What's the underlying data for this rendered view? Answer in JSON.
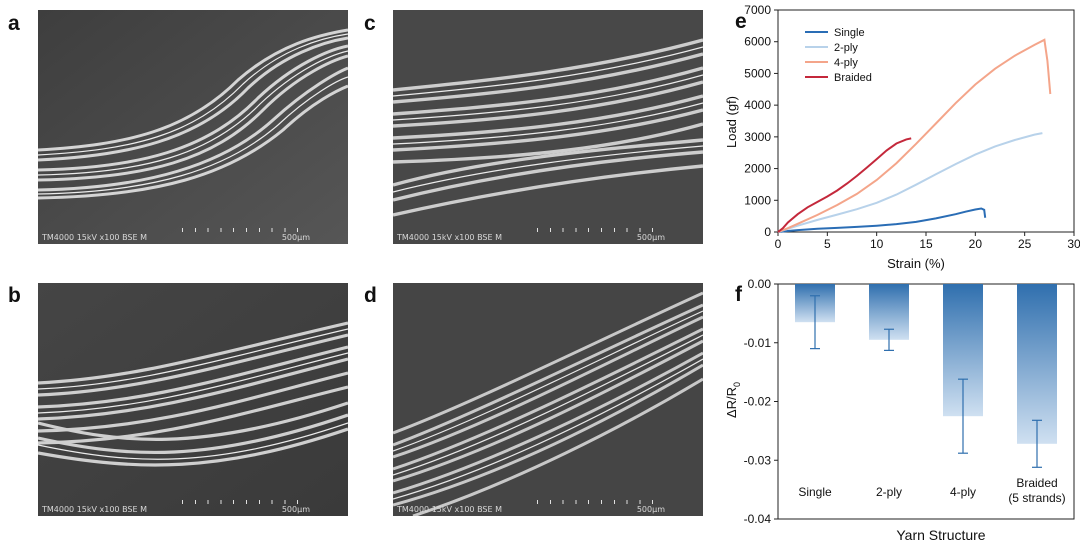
{
  "panels": [
    {
      "letter": "a",
      "caption": "TM4000 15kV x100 BSE M",
      "scale": "500µm"
    },
    {
      "letter": "b",
      "caption": "TM4000 15kV x100 BSE M",
      "scale": "500µm"
    },
    {
      "letter": "c",
      "caption": "TM4000 15kV x100 BSE M",
      "scale": "500µm"
    },
    {
      "letter": "d",
      "caption": "TM4000 15kV x100 BSE M",
      "scale": "500µm"
    }
  ],
  "panel_e_letter": "e",
  "panel_f_letter": "f",
  "chart_data": [
    {
      "type": "line",
      "xlabel": "Strain (%)",
      "ylabel": "Load (gf)",
      "xlim": [
        0,
        30
      ],
      "ylim": [
        0,
        7000
      ],
      "xticks": [
        "0",
        "5",
        "10",
        "15",
        "20",
        "25",
        "30"
      ],
      "yticks": [
        "0",
        "1000",
        "2000",
        "3000",
        "4000",
        "5000",
        "6000",
        "7000"
      ],
      "legend_position": "top-left",
      "series": [
        {
          "name": "Single",
          "color": "#2a6db5",
          "x": [
            0,
            1,
            2,
            4,
            6,
            8,
            10,
            12,
            14,
            16,
            18,
            19,
            20,
            20.6,
            20.9,
            21.0
          ],
          "y": [
            0,
            30,
            60,
            100,
            130,
            160,
            200,
            250,
            320,
            430,
            560,
            640,
            710,
            740,
            700,
            450
          ]
        },
        {
          "name": "2-ply",
          "color": "#b8d2ea",
          "x": [
            0,
            1,
            2,
            4,
            6,
            8,
            10,
            12,
            14,
            16,
            18,
            20,
            22,
            24,
            26,
            26.8
          ],
          "y": [
            0,
            100,
            200,
            380,
            550,
            720,
            920,
            1180,
            1490,
            1820,
            2140,
            2440,
            2700,
            2900,
            3070,
            3120
          ]
        },
        {
          "name": "4-ply",
          "color": "#f4a58a",
          "x": [
            0,
            1,
            2,
            4,
            6,
            8,
            10,
            12,
            14,
            16,
            18,
            20,
            22,
            24,
            26,
            27,
            27.3,
            27.6
          ],
          "y": [
            0,
            120,
            260,
            540,
            850,
            1200,
            1640,
            2170,
            2780,
            3420,
            4060,
            4650,
            5150,
            5560,
            5900,
            6060,
            5400,
            4350
          ]
        },
        {
          "name": "Braided",
          "color": "#c4283b",
          "x": [
            0,
            0.5,
            1,
            2,
            3,
            4,
            5,
            6,
            7,
            8,
            9,
            10,
            11,
            12,
            13,
            13.5
          ],
          "y": [
            0,
            120,
            300,
            560,
            780,
            950,
            1120,
            1310,
            1530,
            1770,
            2030,
            2300,
            2570,
            2790,
            2920,
            2950
          ]
        }
      ]
    },
    {
      "type": "bar",
      "xlabel": "Yarn Structure",
      "ylabel_main": "ΔR/R",
      "ylabel_sub": "0",
      "ylim": [
        -0.04,
        0
      ],
      "yticks": [
        "0.00",
        "-0.01",
        "-0.02",
        "-0.03",
        "-0.04"
      ],
      "categories": [
        {
          "line1": "Single",
          "line2": ""
        },
        {
          "line1": "2-ply",
          "line2": ""
        },
        {
          "line1": "4-ply",
          "line2": ""
        },
        {
          "line1": "Braided",
          "line2": "(5 strands)"
        }
      ],
      "values": [
        -0.0065,
        -0.0095,
        -0.0225,
        -0.0272
      ],
      "errors": [
        0.0045,
        0.0018,
        0.0063,
        0.004
      ],
      "color": "#2f6fae"
    }
  ]
}
